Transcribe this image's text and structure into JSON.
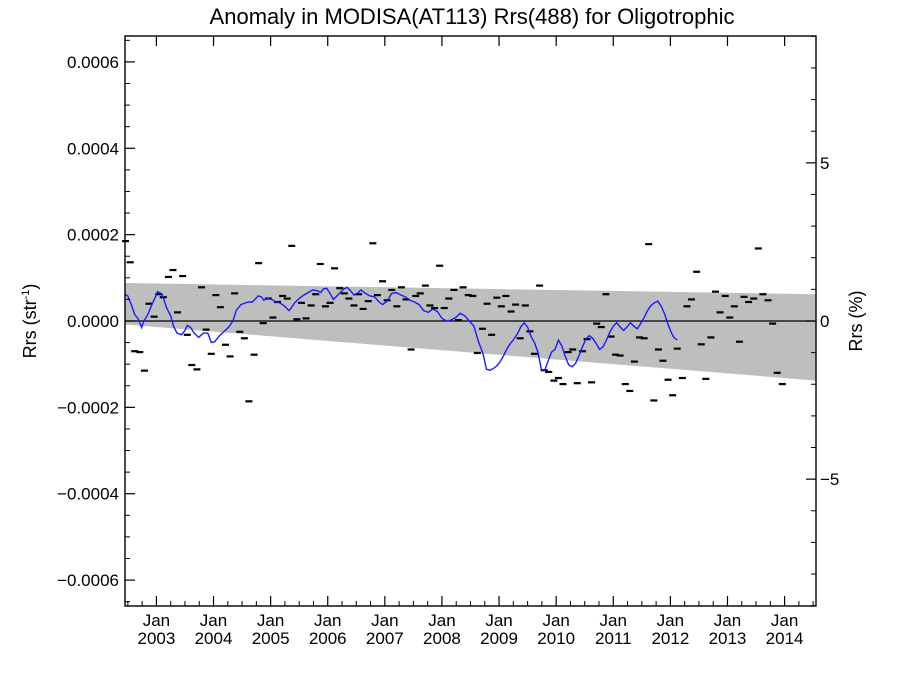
{
  "chart_data": {
    "type": "scatter",
    "title": "Anomaly in MODISA(AT113) Rrs(488) for Oligotrophic",
    "ylabel_left": "Rrs (str",
    "ylabel_left_sup": "-1",
    "ylabel_left_close": ")",
    "ylabel_right": "Rrs (%)",
    "xlim": [
      2002.45,
      2014.55
    ],
    "ylim_left": [
      -0.00066,
      0.00066
    ],
    "ylim_right": [
      -9.01,
      9.01
    ],
    "y_ticks_left": [
      {
        "value": 0.0006,
        "label": "0.0006"
      },
      {
        "value": 0.0004,
        "label": "0.0004"
      },
      {
        "value": 0.0002,
        "label": "0.0002"
      },
      {
        "value": 0.0,
        "label": "0.0000"
      },
      {
        "value": -0.0002,
        "label": "−0.0002"
      },
      {
        "value": -0.0004,
        "label": "−0.0004"
      },
      {
        "value": -0.0006,
        "label": "−0.0006"
      }
    ],
    "y_ticks_right": [
      {
        "value": 5,
        "label": "5"
      },
      {
        "value": 0,
        "label": "0"
      },
      {
        "value": -5,
        "label": "−5"
      }
    ],
    "x_ticks": [
      {
        "value": 2003,
        "month": "Jan",
        "year": "2003"
      },
      {
        "value": 2004,
        "month": "Jan",
        "year": "2004"
      },
      {
        "value": 2005,
        "month": "Jan",
        "year": "2005"
      },
      {
        "value": 2006,
        "month": "Jan",
        "year": "2006"
      },
      {
        "value": 2007,
        "month": "Jan",
        "year": "2007"
      },
      {
        "value": 2008,
        "month": "Jan",
        "year": "2008"
      },
      {
        "value": 2009,
        "month": "Jan",
        "year": "2009"
      },
      {
        "value": 2010,
        "month": "Jan",
        "year": "2010"
      },
      {
        "value": 2011,
        "month": "Jan",
        "year": "2011"
      },
      {
        "value": 2012,
        "month": "Jan",
        "year": "2012"
      },
      {
        "value": 2013,
        "month": "Jan",
        "year": "2013"
      },
      {
        "value": 2014,
        "month": "Jan",
        "year": "2014"
      }
    ],
    "band": {
      "color": "#bebebe",
      "upper": [
        [
          2002.45,
          8.8e-05
        ],
        [
          2014.55,
          6.2e-05
        ]
      ],
      "lower": [
        [
          2002.45,
          -8e-06
        ],
        [
          2014.55,
          -0.000138
        ]
      ]
    },
    "zero_line": 0,
    "monthly_anomalies": [
      [
        2002.46,
        0.000185
      ],
      [
        2002.54,
        0.000136
      ],
      [
        2002.62,
        -7e-05
      ],
      [
        2002.71,
        -7.2e-05
      ],
      [
        2002.79,
        -0.000115
      ],
      [
        2002.87,
        4e-05
      ],
      [
        2002.96,
        1e-05
      ],
      [
        2003.04,
        6.2e-05
      ],
      [
        2003.12,
        5.5e-05
      ],
      [
        2003.21,
        0.000102
      ],
      [
        2003.29,
        0.000118
      ],
      [
        2003.37,
        2e-05
      ],
      [
        2003.46,
        0.000104
      ],
      [
        2003.54,
        -3.2e-05
      ],
      [
        2003.62,
        -0.000102
      ],
      [
        2003.71,
        -0.000112
      ],
      [
        2003.79,
        7.8e-05
      ],
      [
        2003.87,
        -2e-05
      ],
      [
        2003.96,
        -7.6e-05
      ],
      [
        2004.04,
        6e-05
      ],
      [
        2004.12,
        3.2e-05
      ],
      [
        2004.21,
        -5.5e-05
      ],
      [
        2004.29,
        -8.2e-05
      ],
      [
        2004.37,
        6.4e-05
      ],
      [
        2004.46,
        -2.5e-05
      ],
      [
        2004.54,
        -4e-05
      ],
      [
        2004.62,
        -0.000186
      ],
      [
        2004.71,
        -7.8e-05
      ],
      [
        2004.79,
        0.000134
      ],
      [
        2004.87,
        -5e-06
      ],
      [
        2004.96,
        5.2e-05
      ],
      [
        2005.04,
        8e-06
      ],
      [
        2005.12,
        4.4e-05
      ],
      [
        2005.21,
        5.8e-05
      ],
      [
        2005.29,
        5.2e-05
      ],
      [
        2005.37,
        0.000174
      ],
      [
        2005.46,
        4e-06
      ],
      [
        2005.54,
        4.2e-05
      ],
      [
        2005.62,
        6e-06
      ],
      [
        2005.71,
        3.6e-05
      ],
      [
        2005.79,
        6.2e-05
      ],
      [
        2005.87,
        0.000132
      ],
      [
        2005.96,
        3.4e-05
      ],
      [
        2006.04,
        4.2e-05
      ],
      [
        2006.12,
        0.000122
      ],
      [
        2006.21,
        7.6e-05
      ],
      [
        2006.29,
        6.4e-05
      ],
      [
        2006.37,
        5.2e-05
      ],
      [
        2006.46,
        3.6e-05
      ],
      [
        2006.54,
        6.2e-05
      ],
      [
        2006.62,
        2.8e-05
      ],
      [
        2006.71,
        4.6e-05
      ],
      [
        2006.79,
        0.00018
      ],
      [
        2006.87,
        6e-05
      ],
      [
        2006.96,
        9.2e-05
      ],
      [
        2007.04,
        4.8e-05
      ],
      [
        2007.12,
        7.2e-05
      ],
      [
        2007.21,
        3.4e-05
      ],
      [
        2007.29,
        7.8e-05
      ],
      [
        2007.37,
        5e-05
      ],
      [
        2007.46,
        -6.6e-05
      ],
      [
        2007.54,
        5.8e-05
      ],
      [
        2007.62,
        6.4e-05
      ],
      [
        2007.71,
        8.2e-05
      ],
      [
        2007.79,
        3.6e-05
      ],
      [
        2007.87,
        3e-05
      ],
      [
        2007.96,
        0.000128
      ],
      [
        2008.04,
        3e-05
      ],
      [
        2008.12,
        5.2e-05
      ],
      [
        2008.21,
        7.2e-05
      ],
      [
        2008.29,
        2e-06
      ],
      [
        2008.37,
        7.8e-05
      ],
      [
        2008.46,
        6e-05
      ],
      [
        2008.54,
        5.8e-05
      ],
      [
        2008.62,
        -7.4e-05
      ],
      [
        2008.71,
        -1.8e-05
      ],
      [
        2008.79,
        4e-05
      ],
      [
        2008.87,
        -3.2e-05
      ],
      [
        2008.96,
        5.4e-05
      ],
      [
        2009.04,
        3.4e-05
      ],
      [
        2009.12,
        5.8e-05
      ],
      [
        2009.21,
        2.2e-05
      ],
      [
        2009.29,
        3.8e-05
      ],
      [
        2009.37,
        -4e-05
      ],
      [
        2009.46,
        3.6e-05
      ],
      [
        2009.54,
        -2.4e-05
      ],
      [
        2009.62,
        -7.6e-05
      ],
      [
        2009.71,
        8.2e-05
      ],
      [
        2009.79,
        -0.000114
      ],
      [
        2009.87,
        -0.000118
      ],
      [
        2009.96,
        -0.000138
      ],
      [
        2010.04,
        -0.000132
      ],
      [
        2010.12,
        -0.000146
      ],
      [
        2010.21,
        -7.2e-05
      ],
      [
        2010.29,
        -6.6e-05
      ],
      [
        2010.37,
        -0.000144
      ],
      [
        2010.46,
        -7e-05
      ],
      [
        2010.54,
        -4.2e-05
      ],
      [
        2010.62,
        -0.000142
      ],
      [
        2010.71,
        -6e-06
      ],
      [
        2010.79,
        -1.4e-05
      ],
      [
        2010.87,
        6.2e-05
      ],
      [
        2010.96,
        -3.6e-05
      ],
      [
        2011.04,
        -7.8e-05
      ],
      [
        2011.12,
        -8e-05
      ],
      [
        2011.21,
        -0.000146
      ],
      [
        2011.29,
        -0.000162
      ],
      [
        2011.37,
        -9.4e-05
      ],
      [
        2011.46,
        -3.8e-05
      ],
      [
        2011.54,
        -4e-05
      ],
      [
        2011.62,
        0.000178
      ],
      [
        2011.71,
        -0.000184
      ],
      [
        2011.79,
        -6.6e-05
      ],
      [
        2011.87,
        -9.2e-05
      ],
      [
        2011.96,
        -0.000136
      ],
      [
        2012.04,
        -0.000172
      ],
      [
        2012.12,
        -6.4e-05
      ],
      [
        2012.21,
        -0.000132
      ],
      [
        2012.29,
        3.4e-05
      ],
      [
        2012.37,
        5e-05
      ],
      [
        2012.46,
        0.000114
      ],
      [
        2012.54,
        -5.4e-05
      ],
      [
        2012.62,
        -0.000134
      ],
      [
        2012.71,
        -3.8e-05
      ],
      [
        2012.79,
        6.8e-05
      ],
      [
        2012.87,
        2e-05
      ],
      [
        2012.96,
        5.8e-05
      ],
      [
        2013.04,
        8e-06
      ],
      [
        2013.12,
        3.4e-05
      ],
      [
        2013.21,
        -4.8e-05
      ],
      [
        2013.29,
        5.6e-05
      ],
      [
        2013.37,
        4.4e-05
      ],
      [
        2013.46,
        5.2e-05
      ],
      [
        2013.54,
        0.000168
      ],
      [
        2013.62,
        6.2e-05
      ],
      [
        2013.71,
        4.8e-05
      ],
      [
        2013.79,
        -6e-06
      ],
      [
        2013.87,
        -0.00012
      ],
      [
        2013.96,
        -0.000146
      ]
    ],
    "running_mean": [
      [
        2002.45,
        6.2e-05
      ],
      [
        2002.5,
        5.8e-05
      ],
      [
        2002.56,
        3.8e-05
      ],
      [
        2002.62,
        1.5e-05
      ],
      [
        2002.68,
        5e-06
      ],
      [
        2002.74,
        -1.5e-05
      ],
      [
        2002.78,
        0.0
      ],
      [
        2002.85,
        1.5e-05
      ],
      [
        2002.92,
        3.8e-05
      ],
      [
        2002.98,
        5.5e-05
      ],
      [
        2003.02,
        6.8e-05
      ],
      [
        2003.1,
        6.2e-05
      ],
      [
        2003.18,
        3e-05
      ],
      [
        2003.25,
        1.2e-05
      ],
      [
        2003.3,
        -1.2e-05
      ],
      [
        2003.36,
        -2.8e-05
      ],
      [
        2003.44,
        -3.2e-05
      ],
      [
        2003.5,
        -2.2e-05
      ],
      [
        2003.54,
        -1e-05
      ],
      [
        2003.6,
        -1.5e-05
      ],
      [
        2003.66,
        -2.8e-05
      ],
      [
        2003.74,
        -3.8e-05
      ],
      [
        2003.82,
        -2.8e-05
      ],
      [
        2003.9,
        -2.8e-05
      ],
      [
        2003.96,
        -5e-05
      ],
      [
        2004.02,
        -4.8e-05
      ],
      [
        2004.1,
        -3.5e-05
      ],
      [
        2004.18,
        -2.5e-05
      ],
      [
        2004.26,
        -1.5e-05
      ],
      [
        2004.34,
        0.0
      ],
      [
        2004.4,
        2.5e-05
      ],
      [
        2004.48,
        3.8e-05
      ],
      [
        2004.56,
        4.2e-05
      ],
      [
        2004.62,
        4.4e-05
      ],
      [
        2004.68,
        4.4e-05
      ],
      [
        2004.74,
        5.2e-05
      ],
      [
        2004.78,
        5.8e-05
      ],
      [
        2004.84,
        5.6e-05
      ],
      [
        2004.88,
        4.8e-05
      ],
      [
        2004.94,
        5.2e-05
      ],
      [
        2005.02,
        5e-05
      ],
      [
        2005.08,
        4.5e-05
      ],
      [
        2005.16,
        4.2e-05
      ],
      [
        2005.24,
        3.5e-05
      ],
      [
        2005.32,
        2.4e-05
      ],
      [
        2005.36,
        3e-05
      ],
      [
        2005.42,
        4.2e-05
      ],
      [
        2005.5,
        5.2e-05
      ],
      [
        2005.58,
        6e-05
      ],
      [
        2005.66,
        6.6e-05
      ],
      [
        2005.74,
        7.2e-05
      ],
      [
        2005.82,
        7e-05
      ],
      [
        2005.88,
        6.6e-05
      ],
      [
        2005.92,
        7.4e-05
      ],
      [
        2005.98,
        7.6e-05
      ],
      [
        2006.04,
        6.4e-05
      ],
      [
        2006.1,
        5e-05
      ],
      [
        2006.16,
        5.8e-05
      ],
      [
        2006.22,
        6.6e-05
      ],
      [
        2006.28,
        7.4e-05
      ],
      [
        2006.34,
        7.8e-05
      ],
      [
        2006.4,
        7e-05
      ],
      [
        2006.46,
        6e-05
      ],
      [
        2006.52,
        6.4e-05
      ],
      [
        2006.58,
        7.2e-05
      ],
      [
        2006.66,
        6.4e-05
      ],
      [
        2006.74,
        5.8e-05
      ],
      [
        2006.82,
        5.6e-05
      ],
      [
        2006.9,
        4.4e-05
      ],
      [
        2006.96,
        3.8e-05
      ],
      [
        2007.04,
        4.6e-05
      ],
      [
        2007.12,
        6.4e-05
      ],
      [
        2007.2,
        6.6e-05
      ],
      [
        2007.28,
        6e-05
      ],
      [
        2007.36,
        5.6e-05
      ],
      [
        2007.44,
        4.8e-05
      ],
      [
        2007.52,
        4.4e-05
      ],
      [
        2007.6,
        3.8e-05
      ],
      [
        2007.68,
        2.4e-05
      ],
      [
        2007.76,
        2e-05
      ],
      [
        2007.84,
        2.8e-05
      ],
      [
        2007.92,
        2.2e-05
      ],
      [
        2008.0,
        6e-06
      ],
      [
        2008.08,
        0.0
      ],
      [
        2008.16,
        2e-06
      ],
      [
        2008.24,
        8e-06
      ],
      [
        2008.32,
        1.8e-05
      ],
      [
        2008.4,
        1.2e-05
      ],
      [
        2008.48,
        0.0
      ],
      [
        2008.56,
        -1.2e-05
      ],
      [
        2008.64,
        -4.8e-05
      ],
      [
        2008.72,
        -7.6e-05
      ],
      [
        2008.78,
        -0.000112
      ],
      [
        2008.84,
        -0.000114
      ],
      [
        2008.9,
        -0.00011
      ],
      [
        2008.96,
        -0.000104
      ],
      [
        2009.02,
        -9.4e-05
      ],
      [
        2009.08,
        -8e-05
      ],
      [
        2009.14,
        -6.4e-05
      ],
      [
        2009.2,
        -5.2e-05
      ],
      [
        2009.26,
        -4.2e-05
      ],
      [
        2009.32,
        -3e-05
      ],
      [
        2009.38,
        -1.4e-05
      ],
      [
        2009.44,
        -4e-06
      ],
      [
        2009.5,
        -1.4e-05
      ],
      [
        2009.56,
        -3.6e-05
      ],
      [
        2009.62,
        -5e-05
      ],
      [
        2009.68,
        -7.2e-05
      ],
      [
        2009.74,
        -0.000112
      ],
      [
        2009.8,
        -0.000114
      ],
      [
        2009.86,
        -9.2e-05
      ],
      [
        2009.92,
        -7.2e-05
      ],
      [
        2009.98,
        -6.6e-05
      ],
      [
        2010.04,
        -4.4e-05
      ],
      [
        2010.1,
        -5.8e-05
      ],
      [
        2010.16,
        -8.2e-05
      ],
      [
        2010.22,
        -0.000102
      ],
      [
        2010.28,
        -0.000106
      ],
      [
        2010.34,
        -9.8e-05
      ],
      [
        2010.4,
        -8e-05
      ],
      [
        2010.46,
        -6e-05
      ],
      [
        2010.52,
        -4.2e-05
      ],
      [
        2010.58,
        -3.4e-05
      ],
      [
        2010.64,
        -4e-05
      ],
      [
        2010.7,
        -5.2e-05
      ],
      [
        2010.76,
        -6.6e-05
      ],
      [
        2010.82,
        -6e-05
      ],
      [
        2010.88,
        -4.4e-05
      ],
      [
        2010.94,
        -2.6e-05
      ],
      [
        2011.0,
        -1.2e-05
      ],
      [
        2011.06,
        -4e-06
      ],
      [
        2011.12,
        -1.4e-05
      ],
      [
        2011.18,
        -2.2e-05
      ],
      [
        2011.24,
        -1.4e-05
      ],
      [
        2011.3,
        -4e-06
      ],
      [
        2011.36,
        -1.2e-05
      ],
      [
        2011.42,
        -1.8e-05
      ],
      [
        2011.48,
        -6e-06
      ],
      [
        2011.54,
        8e-06
      ],
      [
        2011.6,
        2.4e-05
      ],
      [
        2011.66,
        3.6e-05
      ],
      [
        2011.72,
        4.2e-05
      ],
      [
        2011.78,
        4.6e-05
      ],
      [
        2011.84,
        3.4e-05
      ],
      [
        2011.9,
        1.6e-05
      ],
      [
        2011.96,
        -8e-06
      ],
      [
        2012.02,
        -2.8e-05
      ],
      [
        2012.06,
        -3.8e-05
      ],
      [
        2012.12,
        -4.4e-05
      ]
    ],
    "colors": {
      "mean_line": "#1a1aff",
      "marks": "#000000",
      "band": "#bebebe"
    }
  }
}
